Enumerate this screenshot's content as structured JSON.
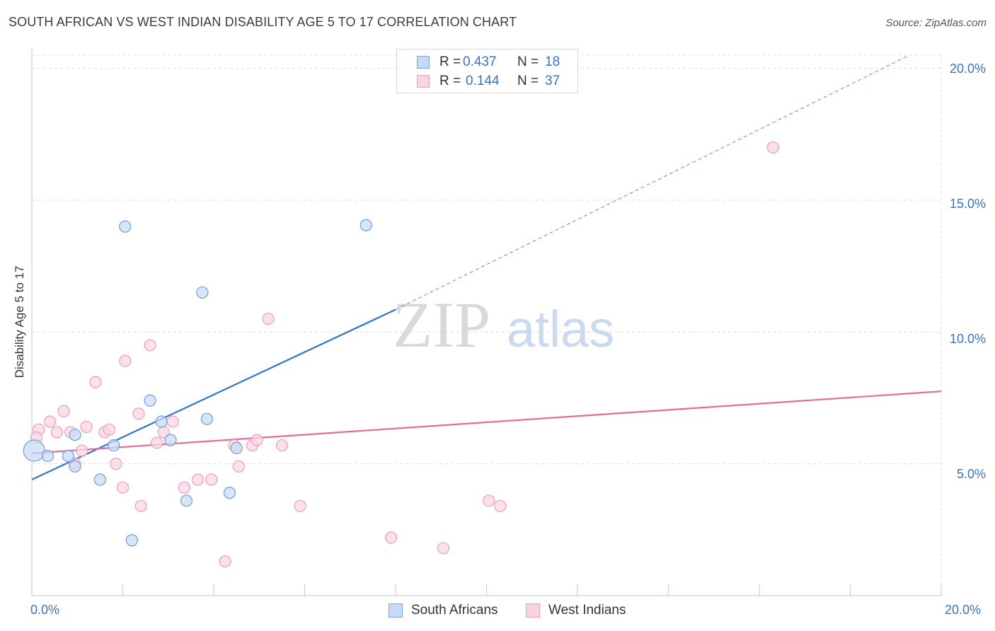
{
  "header": {
    "title": "SOUTH AFRICAN VS WEST INDIAN DISABILITY AGE 5 TO 17 CORRELATION CHART",
    "source": "Source: ZipAtlas.com"
  },
  "watermark": {
    "zip": "ZIP",
    "atlas": "atlas"
  },
  "legend": {
    "rows": [
      {
        "r_label": "R = ",
        "r_value": "0.437",
        "n_label": "N = ",
        "n_value": "18",
        "color": "#7aa6e6",
        "fill": "#c5daf7"
      },
      {
        "r_label": "R = ",
        "r_value": "0.144",
        "n_label": "N = ",
        "n_value": "37",
        "color": "#ee9fbb",
        "fill": "#fad3e0"
      }
    ]
  },
  "bottom_legend": [
    "South Africans",
    "West Indians"
  ],
  "colors": {
    "blue_line": "#2f74d0",
    "pink_line": "#e46b95",
    "blue_point_stroke": "#6d9ee0",
    "blue_point_fill": "#c9dcf6",
    "pink_point_stroke": "#ef9dba",
    "pink_point_fill": "#fbd7e3",
    "tick_text": "#3a72c4",
    "grid": "#dcdcdc"
  },
  "chart_data": {
    "type": "scatter",
    "title": "SOUTH AFRICAN VS WEST INDIAN DISABILITY AGE 5 TO 17 CORRELATION CHART",
    "xlabel": "",
    "ylabel": "Disability Age 5 to 17",
    "xlim": [
      0,
      20
    ],
    "ylim": [
      0,
      20.5
    ],
    "x_tick_labels": [
      "0.0%",
      "20.0%"
    ],
    "y_ticks": [
      5,
      10,
      15,
      20
    ],
    "y_tick_labels": [
      "5.0%",
      "10.0%",
      "15.0%",
      "20.0%"
    ],
    "grid": true,
    "legend_position": "top-center",
    "series": [
      {
        "name": "South Africans",
        "R": 0.437,
        "N": 18,
        "trend": {
          "x0": 0,
          "y0": 4.4,
          "x1": 8.0,
          "y1": 10.85,
          "dashed_to_x": 19.3,
          "dashed_to_y": 20.5
        },
        "points": [
          [
            0.05,
            5.5
          ],
          [
            0.35,
            5.3
          ],
          [
            0.95,
            6.1
          ],
          [
            0.8,
            5.3
          ],
          [
            0.95,
            4.9
          ],
          [
            1.5,
            4.4
          ],
          [
            1.8,
            5.7
          ],
          [
            2.05,
            14.0
          ],
          [
            2.2,
            2.1
          ],
          [
            2.6,
            7.4
          ],
          [
            2.85,
            6.6
          ],
          [
            3.05,
            5.9
          ],
          [
            3.4,
            3.6
          ],
          [
            3.75,
            11.5
          ],
          [
            3.85,
            6.7
          ],
          [
            4.35,
            3.9
          ],
          [
            4.5,
            5.6
          ],
          [
            7.35,
            14.05
          ]
        ]
      },
      {
        "name": "West Indians",
        "R": 0.144,
        "N": 37,
        "trend": {
          "x0": 0,
          "y0": 5.4,
          "x1": 20,
          "y1": 7.75
        },
        "points": [
          [
            0.15,
            6.3
          ],
          [
            0.4,
            6.6
          ],
          [
            0.55,
            6.2
          ],
          [
            0.7,
            7.0
          ],
          [
            0.85,
            6.2
          ],
          [
            0.95,
            5.0
          ],
          [
            1.1,
            5.5
          ],
          [
            1.4,
            8.1
          ],
          [
            1.6,
            6.2
          ],
          [
            1.7,
            6.3
          ],
          [
            1.85,
            5.0
          ],
          [
            2.0,
            4.1
          ],
          [
            2.05,
            8.9
          ],
          [
            2.35,
            6.9
          ],
          [
            2.4,
            3.4
          ],
          [
            2.6,
            9.5
          ],
          [
            2.75,
            5.8
          ],
          [
            2.9,
            6.2
          ],
          [
            3.1,
            6.6
          ],
          [
            3.35,
            4.1
          ],
          [
            3.65,
            4.4
          ],
          [
            3.95,
            4.4
          ],
          [
            4.25,
            1.3
          ],
          [
            4.45,
            5.7
          ],
          [
            4.55,
            4.9
          ],
          [
            4.85,
            5.7
          ],
          [
            4.95,
            5.9
          ],
          [
            5.2,
            10.5
          ],
          [
            5.5,
            5.7
          ],
          [
            5.9,
            3.4
          ],
          [
            7.9,
            2.2
          ],
          [
            9.05,
            1.8
          ],
          [
            10.05,
            3.6
          ],
          [
            10.3,
            3.4
          ],
          [
            16.3,
            17.0
          ],
          [
            0.1,
            6.0
          ],
          [
            1.2,
            6.4
          ]
        ]
      }
    ]
  }
}
